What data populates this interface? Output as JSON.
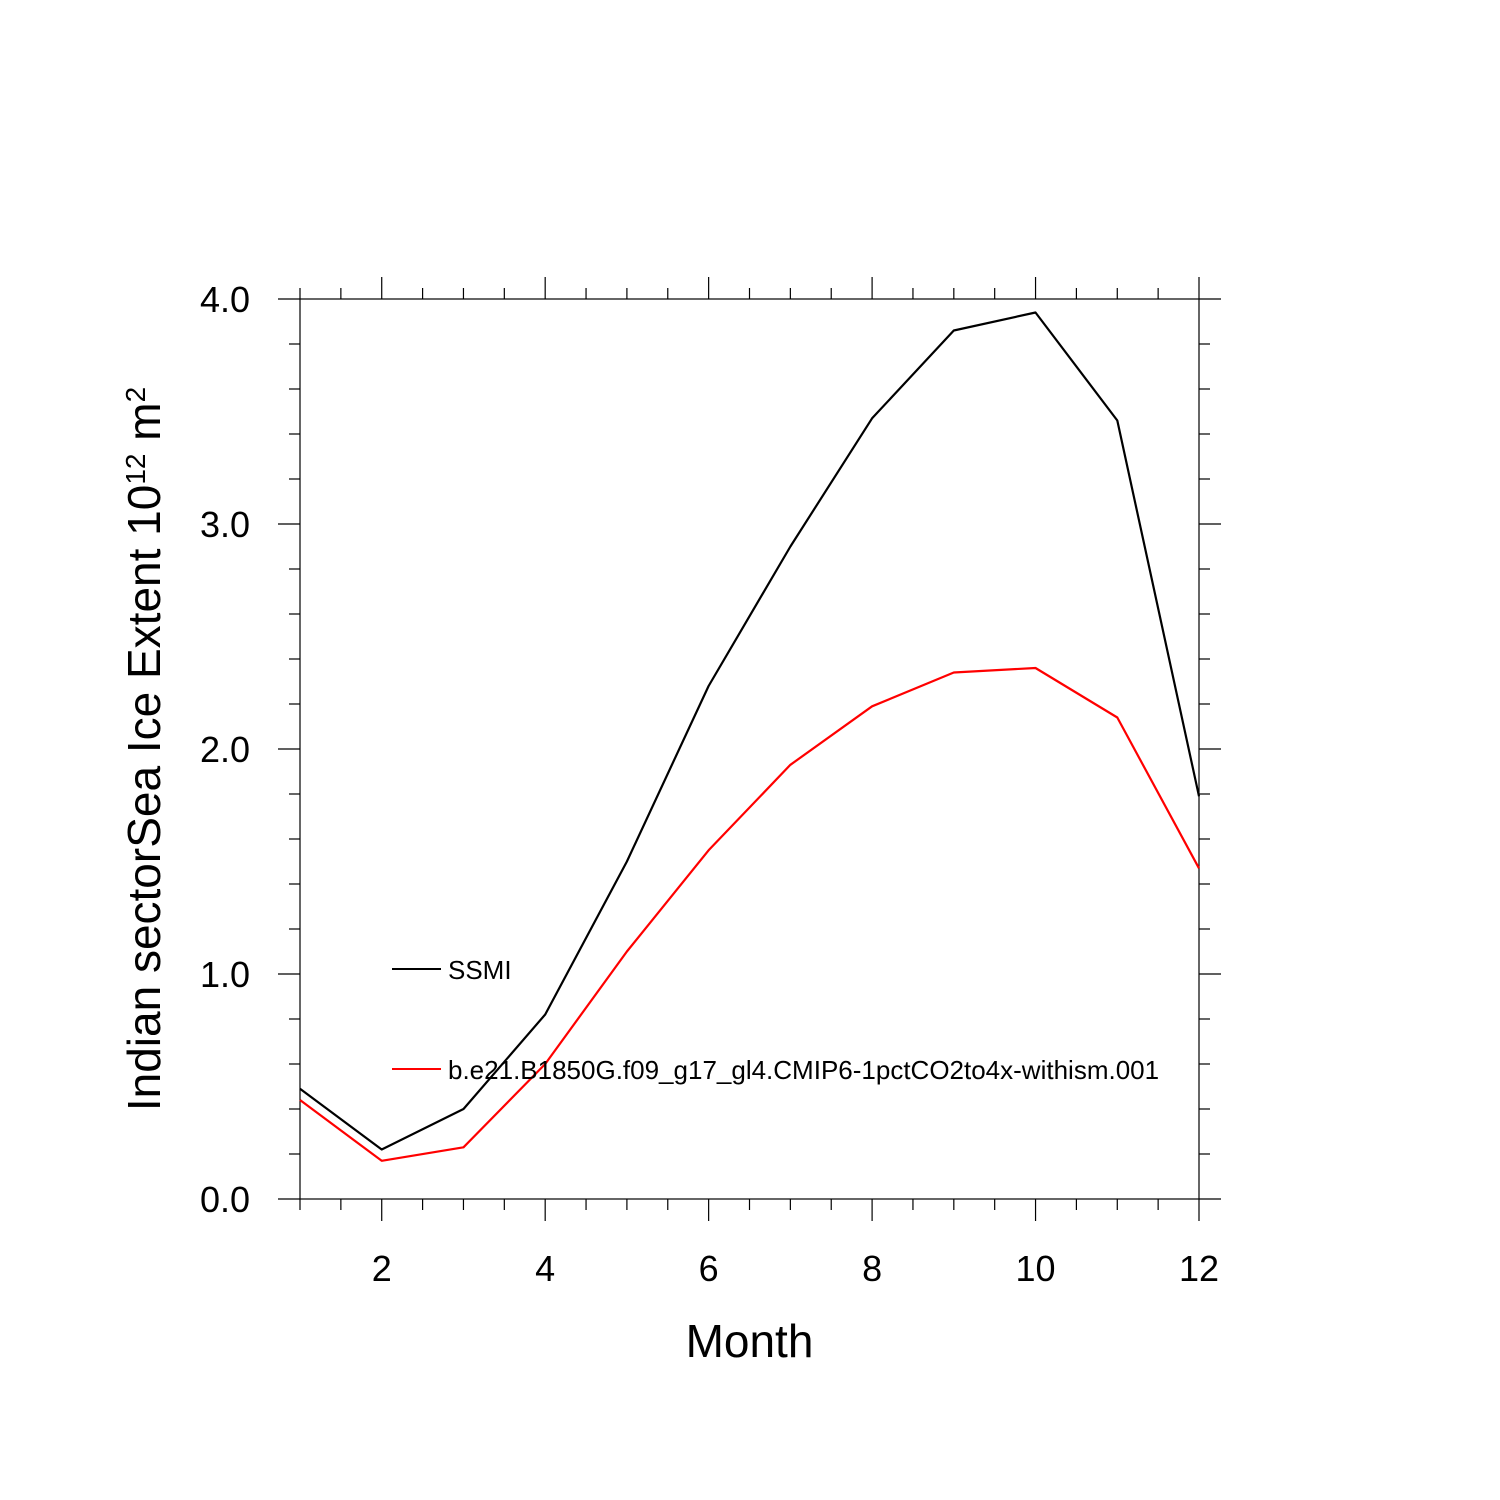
{
  "chart_data": {
    "type": "line",
    "title": "",
    "xlabel": "Month",
    "ylabel": "Indian sectorSea Ice Extent 10",
    "ylabel_exponent": "12",
    "ylabel_unit": " m",
    "ylabel_unit_exponent": "2",
    "xlim": [
      1,
      12
    ],
    "ylim": [
      0.0,
      4.0
    ],
    "x_ticks": [
      2,
      4,
      6,
      8,
      10,
      12
    ],
    "x_tick_labels": [
      "2",
      "4",
      "6",
      "8",
      "10",
      "12"
    ],
    "y_ticks": [
      0.0,
      1.0,
      2.0,
      3.0,
      4.0
    ],
    "y_tick_labels": [
      "0.0",
      "1.0",
      "2.0",
      "3.0",
      "4.0"
    ],
    "grid": false,
    "legend_position": "inside-lower-left",
    "x": [
      1,
      2,
      3,
      4,
      5,
      6,
      7,
      8,
      9,
      10,
      11,
      12
    ],
    "series": [
      {
        "name": "SSMI",
        "color": "#000000",
        "values": [
          0.49,
          0.22,
          0.4,
          0.82,
          1.5,
          2.28,
          2.9,
          3.47,
          3.86,
          3.94,
          3.46,
          1.79
        ]
      },
      {
        "name": "b.e21.B1850G.f09_g17_gl4.CMIP6-1pctCO2to4x-withism.001",
        "color": "#ff0000",
        "values": [
          0.44,
          0.17,
          0.23,
          0.6,
          1.1,
          1.55,
          1.93,
          2.19,
          2.34,
          2.36,
          2.14,
          1.47
        ]
      }
    ]
  }
}
